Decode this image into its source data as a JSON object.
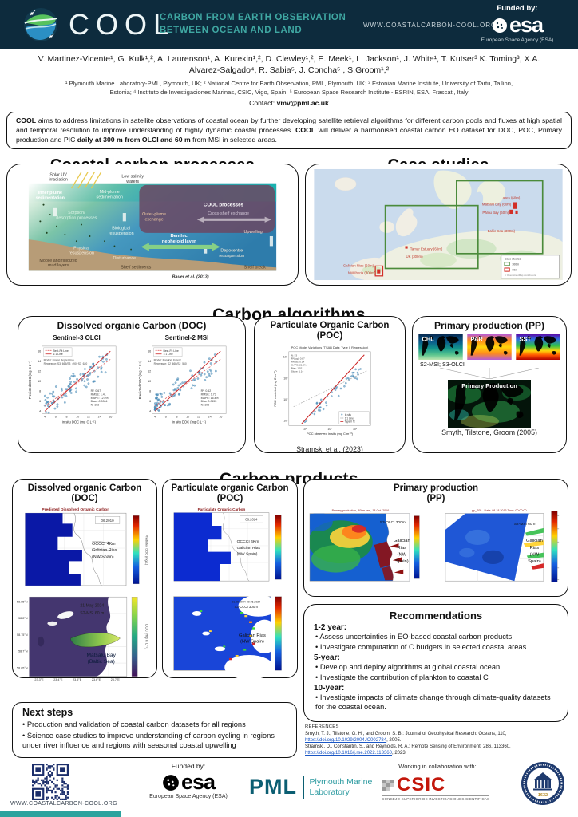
{
  "header": {
    "logo": "COOL",
    "title1": "CARBON FROM EARTH OBSERVATION",
    "title2": "BETWEEN OCEAN AND LAND",
    "website": "WWW.COASTALCARBON-COOL.ORG",
    "funded_by": "Funded by:",
    "esa": "esa",
    "esa_caption": "European Space Agency (ESA)"
  },
  "authors": {
    "line1": "V. Martinez-Vicente¹, G. Kulk¹,², A. Laurenson¹, A. Kurekin¹,², D. Clewley¹,², E. Meek¹, L. Jackson¹, J. White¹, T. Kutser³ K. Toming³, X.A.",
    "line2": "Alvarez-Salgado⁴, R. Sabia⁵, J. Concha⁵ , S.Groom¹,²",
    "aff1": "¹ Plymouth Marine Laboratory-PML, Plymouth, UK; ² National Centre for Earth Observation, PML, Plymouth, UK; ³ Estonian Marine Institute, University of Tartu, Tallinn,",
    "aff2": "Estonia; ⁴ Instituto de Investigaciones Marinas, CSIC, Vigo, Spain; ⁵ European Space Research Institute - ESRIN, ESA, Frascati, Italy",
    "contact_label": "Contact: ",
    "contact_email": "vmv@pml.ac.uk"
  },
  "abstract": {
    "b1": "COOL",
    "t1": " aims to address limitations in satellite observations of coastal ocean by further developing satellite retrieval algorithms for different carbon pools and fluxes at high spatial and temporal resolution to improve understanding of highly dynamic coastal processes.  ",
    "b2": "COOL",
    "t2": " will deliver a harmonised coastal carbon EO dataset  for DOC, POC, Primary production and PIC ",
    "b3": "daily at 300 m from OLCI and 60 m",
    "t3": " from MSI in selected areas."
  },
  "sections": {
    "processes": "Coastal carbon processes",
    "cases": "Case studies",
    "algorithms": "Carbon algorithms",
    "products": "Carbon products"
  },
  "proc": {
    "solar1": "Solar UV",
    "solar2": "irradiation",
    "low1": "Low salinity",
    "low2": "waters",
    "inner1": "Inner plume",
    "inner2": "sedimentation",
    "mid1": "Mid-plume",
    "mid2": "sedimentation",
    "sorp1": "Sorption/",
    "sorp2": "desorption processes",
    "outer1": "Outer-plume",
    "outer2": "exchange",
    "cool": "COOL  processes",
    "cross": "Cross-shelf exchange",
    "bio1": "Biological",
    "bio2": "resuspension",
    "ben1": "Benthic",
    "ben2": "nepheloid layer",
    "up": "Upwelling",
    "phys1": "Physical",
    "phys2": "resuspension",
    "dist": "Disturbance",
    "mob1": "Mobile and fluidized",
    "mob2": "mud layers",
    "shelf": "Shelf sediments",
    "depo1": "Depocentre",
    "depo2": "resuspension",
    "brk": "Shelf break",
    "cite": "Bauer et al. (2013)"
  },
  "case_map": {
    "labels": {
      "lakes": "Lakes (60m)",
      "matsalu": "Matsalu Bay (60m)",
      "parnu": "Pärnu Bay (60m)",
      "baltic": "Baltic Sea (300m)",
      "tamar": "Tamar Estuary (60m)",
      "uk": "UK (300m)",
      "rias": "Galician Rias (60m)",
      "iberia": "NW Iberia (300m)"
    },
    "legend": {
      "title": "Case studies",
      "i300": "300m",
      "i60": "60m",
      "attribution": "© OpenStreetMap contributors"
    }
  },
  "doc_algo": {
    "title": "Dissolved organic Carbon (DOC)",
    "left": {
      "subtitle": "Sentinel-3 OLCI",
      "legend1": "Best-Fit Line",
      "legend2": "1:1 Line",
      "model1": "Model: Linear Regression",
      "model2": "Regressor: S3_665/S3_490+S3_620",
      "stats": [
        "R²: 0.67",
        "RMSE: 1.41",
        "MAPE: 12.5%",
        "Bias: -0.0004",
        "N: 103"
      ],
      "xlabel": "in situ DOC (mg C L⁻¹)",
      "ylabel": "Predicted DOC (mg C L⁻¹)"
    },
    "right": {
      "subtitle": "Sentinel-2  MSI",
      "legend1": "Best-Fit Line",
      "legend2": "1:1 Line",
      "model1": "Model: Random Forest",
      "model2": "Regressor: S2_665/S2_560",
      "stats": [
        "R²: 0.62",
        "RMSE: 1.73",
        "MAPE: 16.4%",
        "Bias: 0.0455",
        "N: 103"
      ],
      "xlabel": "in situ DOC (mg C L⁻¹)",
      "ylabel": "Predicted DOC (mg C L⁻¹)"
    }
  },
  "poc_algo": {
    "title": "Particulate Organic Carbon (POC)",
    "plot_title": "POC Model Variations (TSAB Data: Type II Regression)",
    "xlabel": "POC observed in situ (mg C m⁻³)",
    "ylabel": "POC modeled (mg C m⁻³)",
    "stats": [
      "N: 53",
      "R²(log): 0.87",
      "RMSE: 0.14",
      "MAPE: 21.3%",
      "Bias: 1.02",
      "Slope: 1.14"
    ],
    "legend": [
      "In situ",
      "1:1 Line",
      "Type II fit"
    ],
    "xticks": [
      "10¹",
      "10²",
      "10³"
    ],
    "yticks": [
      "10¹",
      "10²",
      "10³",
      "10⁴"
    ],
    "citation": "Stramski et al. (2023)"
  },
  "pp_algo": {
    "title": "Primary production (PP)",
    "map1": "CHL",
    "map2": "PAR",
    "map3": "SST",
    "sensors": "S2-MSI; S3-OLCI",
    "big_map": "Primary Production",
    "citation": "Smyth, Tilstone, Groom (2005)"
  },
  "doc_prod": {
    "title1": "Dissolved organic Carbon",
    "title2": "(DOC)",
    "map1": {
      "title": "Predicted Dissolved Organic Carbon",
      "date": "06.2010",
      "label1": "OCCCI 4Km",
      "label2": "Galician Rias",
      "label3": "(NW Spain)",
      "cbar": "Predicted DOC (mg/L)"
    },
    "map2": {
      "date": "21 May 2024",
      "sensor": "S2-MSI 60 m",
      "label1": "Matsalu Bay",
      "label2": "(Baltic Sea)",
      "cbar": "DOC (mg C L⁻¹)",
      "yticks": [
        "58.85°N",
        "58.8°N",
        "58.75°N",
        "58.7°N",
        "58.65°N"
      ],
      "xticks": [
        "23.3°E",
        "23.4°E",
        "23.5°E",
        "23.6°E",
        "23.7°E"
      ]
    }
  },
  "poc_prod": {
    "title1": "Particulate organic Carbon",
    "title2": "(POC)",
    "map1": {
      "title": "Particulate Organic Carbon",
      "date": "06.2024",
      "label1": "OCCCI 4Km",
      "label2": "Galician Rias",
      "label3": "(NW Spain)"
    },
    "map2": {
      "date": "01.06.2024-30.06.2024",
      "sensor": "S3-OLCI 300m",
      "label1": "Galician Rias",
      "label2": "(NW Spain)"
    }
  },
  "pp_prod": {
    "title1": "Primary production",
    "title2": "(PP)",
    "map1": {
      "title": "Primary production, 300m res., 18 Oct. 2016",
      "sensor": "S3-OLCI 300m",
      "l1": "Galician",
      "l2": "Rias",
      "l3": "(NW",
      "l4": "Spain)"
    },
    "map2": {
      "title": "pp_S05 - Date: 08.18.2016 Time: 00:00:00",
      "sensor": "S2-MSI 60 m",
      "l1": "Galician",
      "l2": "Rias",
      "l3": "(NW",
      "l4": "Spain)"
    }
  },
  "recommendations": {
    "title": "Recommendations",
    "g1": "1-2 year:",
    "g1b1": "• Assess uncertainties in EO-based coastal carbon products",
    "g1b2": "• Investigate computation of C budgets in selected coastal areas.",
    "g2": "5-year:",
    "g2b1": "• Develop and deploy algorithms at global coastal ocean",
    "g2b2": "• Investigate the contribution of plankton to coastal C",
    "g3": "10-year:",
    "g3b1": "• Investigate impacts of climate change  through climate-quality datasets for the coastal ocean."
  },
  "references": {
    "heading": "REFERENCES",
    "r1a": "Smyth, T. J., Tilstone, G. H., and Groom, S. B.: Journal of Geophysical Research: Oceans, 110, ",
    "r1link": "https://doi.org/10.1029/2004JC002784",
    "r1b": ", 2005.",
    "r2a": "Stramski, D., Constantin, S., and Reynolds, R. A.: Remote Sensing of Environment, 286, 113360, ",
    "r2link": "https://doi.org/10.1016/j.rse.2022.113360",
    "r2b": ", 2023."
  },
  "next_steps": {
    "title": "Next steps",
    "b1": "• Production and validation of coastal carbon datasets for all regions",
    "b2": "• Science case studies to improve understanding of carbon cycling in regions under river influence and regions with seasonal coastal upwelling"
  },
  "footer": {
    "website": "WWW.COASTALCARBON-COOL.ORG",
    "funded_by": "Funded by:",
    "esa": "esa",
    "esa_caption": "European Space Agency (ESA)",
    "pml": "PML",
    "pml1": "Plymouth Marine",
    "pml2": "Laboratory",
    "collab": "Working in collaboration with:",
    "csic": "CSIC",
    "csic_caption": "CONSEJO SUPERIOR DE INVESTIGACIONES CIENTIFICAS",
    "tartu_year": "1632"
  },
  "colors": {
    "header_bg": "#0d2b3d",
    "teal": "#3fa7a2",
    "red_label": "#c0392b",
    "green_box": "#4b8b3b"
  }
}
